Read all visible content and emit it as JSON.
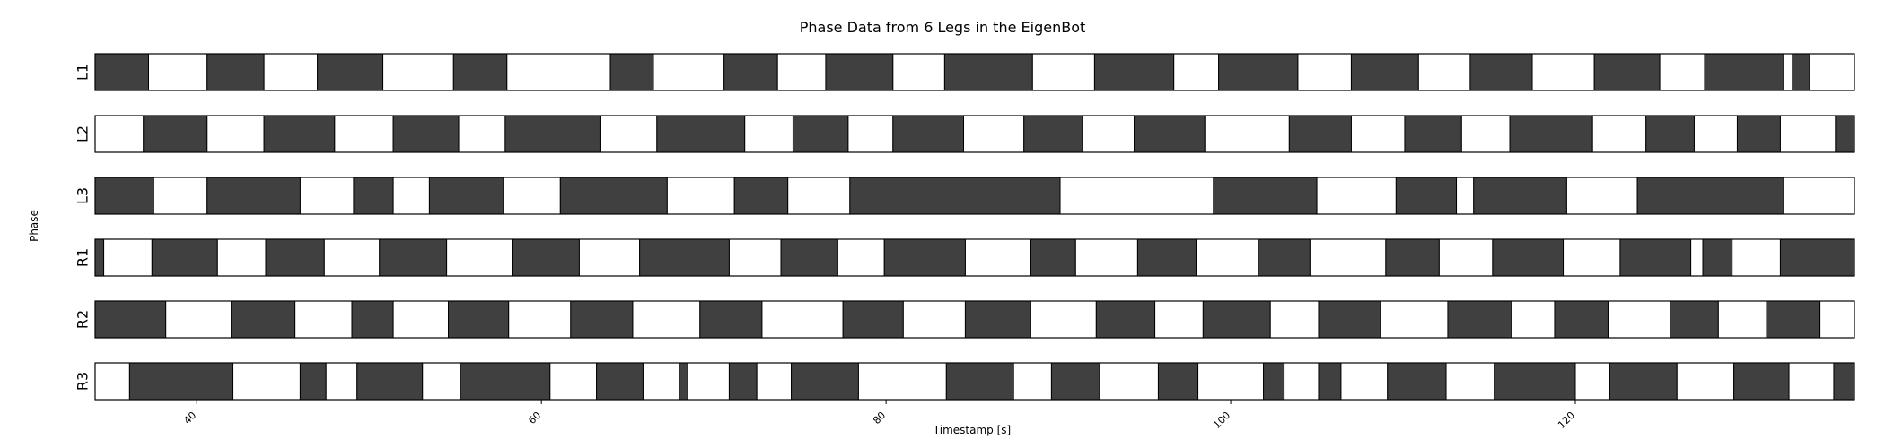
{
  "chart_data": {
    "type": "gantt-phase",
    "title": "Phase Data from 6 Legs in the EigenBot",
    "xlabel": "Timestamp [s]",
    "ylabel": "Phase",
    "xlim": [
      34.1,
      136.2
    ],
    "xticks": [
      40,
      60,
      80,
      100,
      120
    ],
    "xtick_labels": [
      "40",
      "60",
      "80",
      "100",
      "120"
    ],
    "phase_colors": {
      "stance": "#404040",
      "swing": "#ffffff"
    },
    "grid": false,
    "rows": [
      {
        "label": "L1",
        "first_phase": "stance",
        "boundaries": [
          34.1,
          37.2,
          40.6,
          43.9,
          47.0,
          50.8,
          54.9,
          58.0,
          64.0,
          66.5,
          70.6,
          73.7,
          76.5,
          80.4,
          83.4,
          88.5,
          92.1,
          96.7,
          99.3,
          103.9,
          107.0,
          110.9,
          113.9,
          117.5,
          121.1,
          124.9,
          127.5,
          132.1,
          132.6,
          133.6,
          136.2
        ]
      },
      {
        "label": "L2",
        "first_phase": "swing",
        "boundaries": [
          34.1,
          36.9,
          40.6,
          43.9,
          48.0,
          51.4,
          55.2,
          57.9,
          63.4,
          66.7,
          71.8,
          74.6,
          77.8,
          80.4,
          84.5,
          88.0,
          91.4,
          94.4,
          98.5,
          103.4,
          107.0,
          110.1,
          113.4,
          116.2,
          121.0,
          124.1,
          126.9,
          129.4,
          131.9,
          135.1,
          136.2
        ]
      },
      {
        "label": "L3",
        "first_phase": "stance",
        "boundaries": [
          34.1,
          37.5,
          40.6,
          46.0,
          49.1,
          51.4,
          53.5,
          57.8,
          61.1,
          67.3,
          71.2,
          74.3,
          77.9,
          90.1,
          99.0,
          105.0,
          109.6,
          113.1,
          114.1,
          119.5,
          123.6,
          132.1,
          136.2
        ]
      },
      {
        "label": "R1",
        "first_phase": "stance",
        "boundaries": [
          34.1,
          34.6,
          37.4,
          41.2,
          44.0,
          47.4,
          50.6,
          54.5,
          58.3,
          62.2,
          65.7,
          70.9,
          73.9,
          77.2,
          79.9,
          84.6,
          88.4,
          91.0,
          94.6,
          98.0,
          101.6,
          104.6,
          109.0,
          112.1,
          115.2,
          119.3,
          122.6,
          126.7,
          127.4,
          129.1,
          131.9,
          136.2
        ]
      },
      {
        "label": "R2",
        "first_phase": "stance",
        "boundaries": [
          34.1,
          38.2,
          42.0,
          45.7,
          49.0,
          51.4,
          54.6,
          58.1,
          61.7,
          65.3,
          69.2,
          72.8,
          77.5,
          81.0,
          84.6,
          88.4,
          92.2,
          95.6,
          98.4,
          102.3,
          105.1,
          108.7,
          112.6,
          116.3,
          118.8,
          121.9,
          125.5,
          128.3,
          131.1,
          134.2,
          136.2
        ]
      },
      {
        "label": "R3",
        "first_phase": "swing",
        "boundaries": [
          34.1,
          36.1,
          42.1,
          46.0,
          47.5,
          49.3,
          53.1,
          55.3,
          60.5,
          63.2,
          65.9,
          68.0,
          68.5,
          70.9,
          72.5,
          74.5,
          78.4,
          83.5,
          87.4,
          89.6,
          92.4,
          95.8,
          98.1,
          101.9,
          103.1,
          105.1,
          106.4,
          109.1,
          112.5,
          115.3,
          120.0,
          122.0,
          125.9,
          129.2,
          132.4,
          135.0,
          136.2
        ]
      }
    ]
  }
}
